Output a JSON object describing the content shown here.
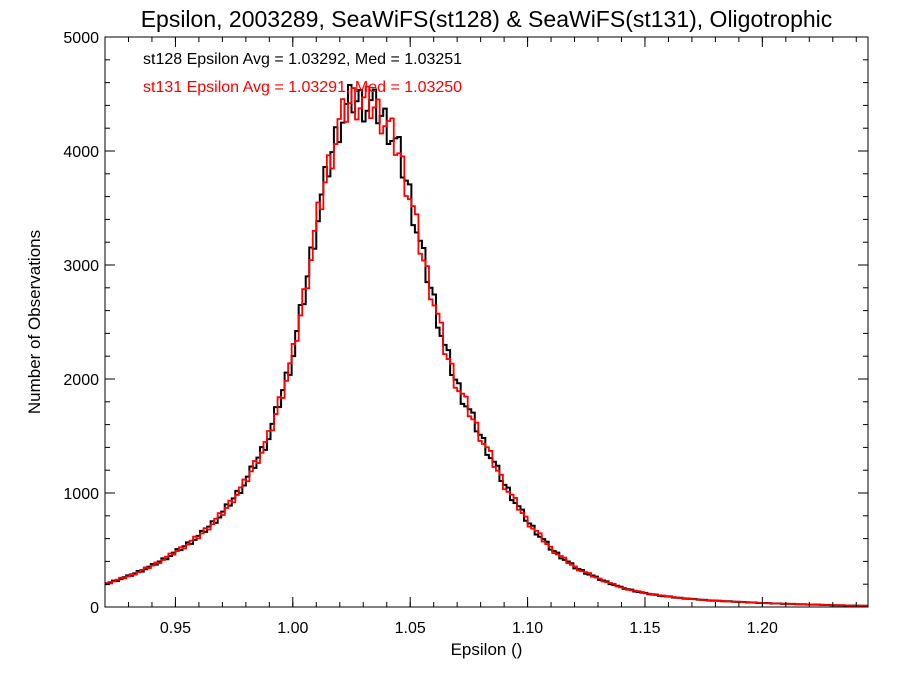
{
  "chart_data": {
    "type": "line",
    "title": "Epsilon, 2003289, SeaWiFS(st128) & SeaWiFS(st131), Oligotrophic",
    "xlabel": "Epsilon ()",
    "ylabel": "Number of Observations",
    "xlim": [
      0.92,
      1.245
    ],
    "ylim": [
      0,
      5000
    ],
    "x_ticks": [
      0.95,
      1.0,
      1.05,
      1.1,
      1.15,
      1.2
    ],
    "x_tick_labels": [
      "0.95",
      "1.00",
      "1.05",
      "1.10",
      "1.15",
      "1.20"
    ],
    "y_ticks": [
      0,
      1000,
      2000,
      3000,
      4000,
      5000
    ],
    "y_tick_labels": [
      "0",
      "1000",
      "2000",
      "3000",
      "4000",
      "5000"
    ],
    "grid": false,
    "legend_placement": "top-left",
    "series": [
      {
        "name": "st128 Epsilon Avg = 1.03292, Med = 1.03251",
        "color": "#000000",
        "x": [
          0.92,
          0.93,
          0.94,
          0.95,
          0.96,
          0.97,
          0.98,
          0.99,
          1.0,
          1.005,
          1.01,
          1.015,
          1.02,
          1.025,
          1.03,
          1.035,
          1.04,
          1.045,
          1.05,
          1.055,
          1.06,
          1.065,
          1.07,
          1.08,
          1.09,
          1.1,
          1.11,
          1.12,
          1.13,
          1.14,
          1.15,
          1.16,
          1.17,
          1.18,
          1.19,
          1.2,
          1.21,
          1.22,
          1.23,
          1.245
        ],
        "values": [
          200,
          270,
          360,
          480,
          620,
          820,
          1100,
          1500,
          2200,
          2750,
          3350,
          3850,
          4250,
          4450,
          4420,
          4380,
          4250,
          4000,
          3600,
          3100,
          2700,
          2250,
          1950,
          1500,
          1080,
          750,
          510,
          350,
          250,
          170,
          120,
          90,
          70,
          55,
          45,
          35,
          28,
          22,
          16,
          10
        ]
      },
      {
        "name": "st131 Epsilon Avg = 1.03291, Med = 1.03250",
        "color": "#ff0000",
        "x": [
          0.92,
          0.93,
          0.94,
          0.95,
          0.96,
          0.97,
          0.98,
          0.99,
          1.0,
          1.005,
          1.01,
          1.015,
          1.02,
          1.025,
          1.03,
          1.035,
          1.04,
          1.045,
          1.05,
          1.055,
          1.06,
          1.065,
          1.07,
          1.08,
          1.09,
          1.1,
          1.11,
          1.12,
          1.13,
          1.14,
          1.15,
          1.16,
          1.17,
          1.18,
          1.19,
          1.2,
          1.21,
          1.22,
          1.23,
          1.245
        ],
        "values": [
          200,
          270,
          360,
          480,
          620,
          820,
          1100,
          1500,
          2200,
          2750,
          3350,
          3850,
          4250,
          4450,
          4420,
          4380,
          4250,
          4000,
          3600,
          3100,
          2700,
          2250,
          1950,
          1500,
          1080,
          750,
          510,
          350,
          250,
          170,
          120,
          90,
          70,
          55,
          45,
          35,
          28,
          22,
          16,
          10
        ]
      }
    ]
  }
}
